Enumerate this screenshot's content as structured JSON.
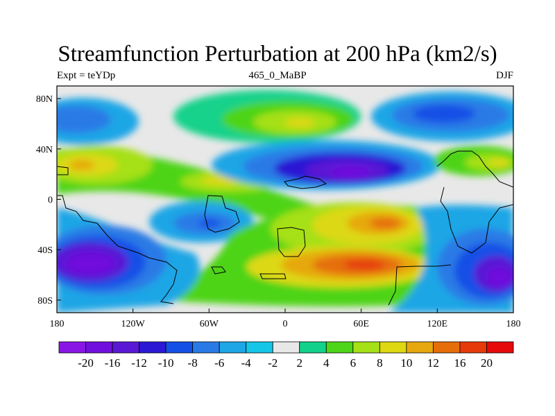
{
  "header": {
    "title": "Streamfunction Perturbation at 200 hPa (km2/s)",
    "left": "Expt = teYDp",
    "center": "465_0_MaBP",
    "right": "DJF"
  },
  "axes": {
    "x_ticks": [
      {
        "value": -180,
        "label": "180"
      },
      {
        "value": -120,
        "label": "120W"
      },
      {
        "value": -60,
        "label": "60W"
      },
      {
        "value": 0,
        "label": "0"
      },
      {
        "value": 60,
        "label": "60E"
      },
      {
        "value": 120,
        "label": "120E"
      },
      {
        "value": 180,
        "label": "180"
      }
    ],
    "y_ticks": [
      {
        "value": 80,
        "label": "80N"
      },
      {
        "value": 40,
        "label": "40N"
      },
      {
        "value": 0,
        "label": "0"
      },
      {
        "value": -40,
        "label": "40S"
      },
      {
        "value": -80,
        "label": "80S"
      }
    ],
    "lon_range": [
      -180,
      180
    ],
    "lat_range": [
      -90,
      90
    ]
  },
  "colorbar": {
    "labels": [
      "-20",
      "-16",
      "-12",
      "-10",
      "-8",
      "-6",
      "-4",
      "-2",
      "2",
      "4",
      "6",
      "8",
      "10",
      "12",
      "16",
      "20"
    ],
    "colors": [
      "#8a16e6",
      "#7010dc",
      "#5a18d4",
      "#2a18d4",
      "#1450e6",
      "#2a7ae6",
      "#1ea6e6",
      "#16c6e6",
      "#e8e8e8",
      "#12d28a",
      "#4ed418",
      "#a6e016",
      "#ddd812",
      "#e6a80e",
      "#e66e0a",
      "#e63a0a",
      "#e60a0a"
    ]
  },
  "chart_data": {
    "type": "heatmap",
    "title": "Streamfunction Perturbation at 200 hPa (km2/s)",
    "contour_levels": [
      -20,
      -16,
      -12,
      -10,
      -8,
      -6,
      -4,
      -2,
      2,
      4,
      6,
      8,
      10,
      12,
      16,
      20
    ],
    "features": [
      {
        "lon": 0,
        "lat": 60,
        "value": 10
      },
      {
        "lon": -165,
        "lat": 25,
        "value": 12
      },
      {
        "lon": 55,
        "lat": 20,
        "value": -16
      },
      {
        "lon": 175,
        "lat": 25,
        "value": 8
      },
      {
        "lon": -165,
        "lat": 65,
        "value": -6
      },
      {
        "lon": 140,
        "lat": 65,
        "value": -8
      },
      {
        "lon": -30,
        "lat": 10,
        "value": 6
      },
      {
        "lon": -55,
        "lat": -20,
        "value": -8
      },
      {
        "lon": 80,
        "lat": -20,
        "value": 14
      },
      {
        "lon": 60,
        "lat": -55,
        "value": 16
      },
      {
        "lon": -160,
        "lat": -50,
        "value": -20
      },
      {
        "lon": 160,
        "lat": -55,
        "value": -14
      }
    ]
  }
}
